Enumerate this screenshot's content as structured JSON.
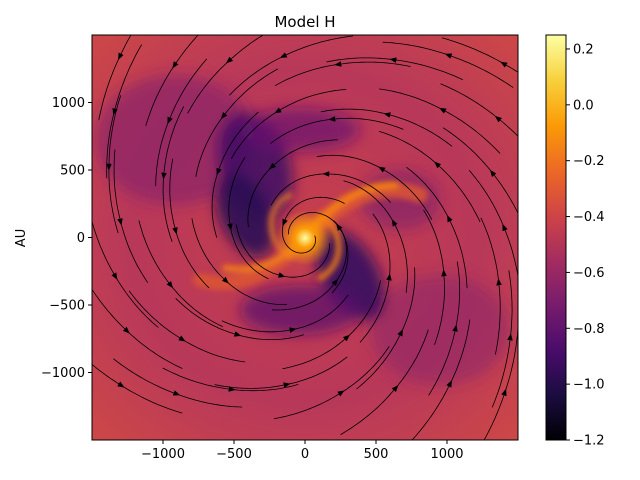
{
  "chart_data": {
    "type": "heatmap",
    "title": "Model H",
    "xlabel": "",
    "ylabel": "AU",
    "xlim": [
      -1500,
      1500
    ],
    "ylim": [
      -1500,
      1500
    ],
    "x_ticks": [
      -1000,
      -500,
      0,
      500,
      1000
    ],
    "x_tick_labels": [
      "−1000",
      "−500",
      "0",
      "500",
      "1000"
    ],
    "y_ticks": [
      -1000,
      -500,
      0,
      500,
      1000
    ],
    "y_tick_labels": [
      "−1000",
      "−500",
      "0",
      "500",
      "1000"
    ],
    "colormap": "inferno",
    "colorbar": {
      "range": [
        -1.2,
        0.25
      ],
      "ticks": [
        -1.2,
        -1.0,
        -0.8,
        -0.6,
        -0.4,
        -0.2,
        0.0,
        0.2
      ],
      "tick_labels": [
        "−1.2",
        "−1.0",
        "−0.8",
        "−0.6",
        "−0.4",
        "−0.2",
        "0.0",
        "0.2"
      ],
      "gradient_colors": [
        "#000004",
        "#1b0c41",
        "#4a0c6b",
        "#781c6d",
        "#a52c60",
        "#cf4446",
        "#ed6925",
        "#fb9b06",
        "#f7d13d",
        "#fcffa4"
      ]
    },
    "overlay": "streamlines with arrows (black)",
    "features": {
      "background_level": -0.45,
      "spiral_arms_level": -0.1,
      "dark_lanes_level": -0.85,
      "center_level": 0.15
    }
  }
}
